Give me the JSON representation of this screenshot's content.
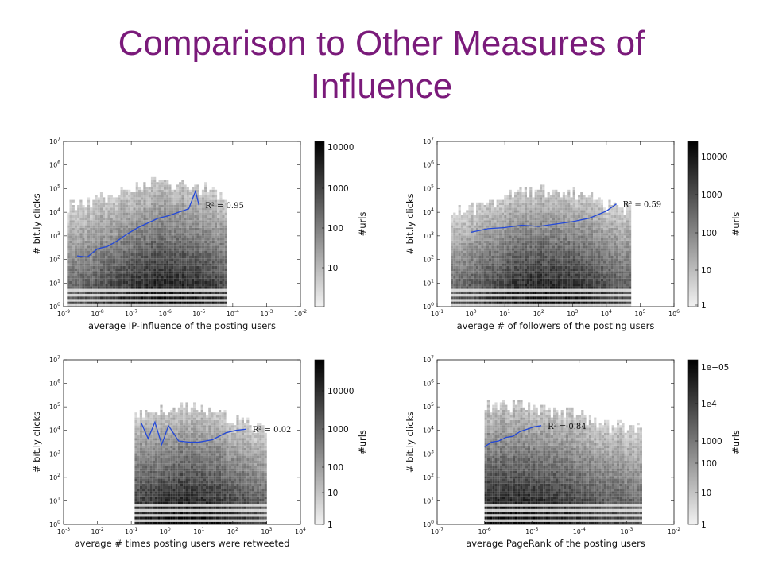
{
  "slide": {
    "title_line1": "Comparison to Other Measures of",
    "title_line2": "Influence"
  },
  "colors": {
    "title": "#7a1a7a",
    "fit_line": "#2348d8",
    "ink": "#111111"
  },
  "chart_data": [
    {
      "type": "heatmap",
      "xlabel": "average IP-influence of the posting users",
      "ylabel": "# bit.ly clicks",
      "x_scale": "log",
      "y_scale": "log",
      "xlim": [
        1e-09,
        0.01
      ],
      "ylim": [
        1,
        10000000.0
      ],
      "x_ticks": [
        "10^-9",
        "10^-8",
        "10^-7",
        "10^-6",
        "10^-5",
        "10^-4",
        "10^-3",
        "10^-2"
      ],
      "y_ticks": [
        "10^0",
        "10^1",
        "10^2",
        "10^3",
        "10^4",
        "10^5",
        "10^6",
        "10^7"
      ],
      "colorbar": {
        "label": "#urls",
        "ticks": [
          "10000",
          "1000",
          "100",
          "10"
        ]
      },
      "annotation": "R^2 = 0.95",
      "fit_line": {
        "x_log": [
          -8.6,
          -8.3,
          -8.0,
          -7.7,
          -7.4,
          -7.1,
          -6.8,
          -6.5,
          -6.2,
          -5.9,
          -5.6,
          -5.3,
          -5.1,
          -5.0
        ],
        "y_log": [
          2.15,
          2.1,
          2.45,
          2.55,
          2.8,
          3.1,
          3.35,
          3.55,
          3.75,
          3.85,
          4.0,
          4.15,
          4.9,
          4.3
        ]
      }
    },
    {
      "type": "heatmap",
      "xlabel": "average # of followers of the posting users",
      "ylabel": "# bit.ly clicks",
      "x_scale": "log",
      "y_scale": "log",
      "xlim": [
        0.1,
        1000000.0
      ],
      "ylim": [
        1,
        10000000.0
      ],
      "x_ticks": [
        "10^-1",
        "10^0",
        "10^1",
        "10^2",
        "10^3",
        "10^4",
        "10^5",
        "10^6"
      ],
      "y_ticks": [
        "10^0",
        "10^1",
        "10^2",
        "10^3",
        "10^4",
        "10^5",
        "10^6",
        "10^7"
      ],
      "colorbar": {
        "label": "#urls",
        "ticks": [
          "10000",
          "1000",
          "100",
          "10",
          "1"
        ]
      },
      "annotation": "R^2 = 0.59",
      "fit_line": {
        "x_log": [
          0.0,
          0.5,
          1.0,
          1.5,
          2.0,
          2.5,
          3.0,
          3.5,
          4.0,
          4.3
        ],
        "y_log": [
          3.15,
          3.3,
          3.35,
          3.45,
          3.4,
          3.5,
          3.6,
          3.75,
          4.05,
          4.35
        ]
      }
    },
    {
      "type": "heatmap",
      "xlabel": "average # times posting users were retweeted",
      "ylabel": "# bit.ly clicks",
      "x_scale": "log",
      "y_scale": "log",
      "xlim": [
        0.001,
        10000.0
      ],
      "ylim": [
        1,
        10000000.0
      ],
      "x_ticks": [
        "10^-3",
        "10^-2",
        "10^-1",
        "10^0",
        "10^1",
        "10^2",
        "10^3",
        "10^4"
      ],
      "y_ticks": [
        "10^0",
        "10^1",
        "10^2",
        "10^3",
        "10^4",
        "10^5",
        "10^6",
        "10^7"
      ],
      "colorbar": {
        "label": "#urls",
        "ticks": [
          "10000",
          "1000",
          "100",
          "10",
          "1"
        ]
      },
      "annotation": "R^2 = 0.02",
      "fit_line": {
        "x_log": [
          -0.7,
          -0.5,
          -0.3,
          -0.1,
          0.1,
          0.4,
          0.7,
          1.0,
          1.4,
          1.8,
          2.1,
          2.4
        ],
        "y_log": [
          4.3,
          3.65,
          4.35,
          3.4,
          4.2,
          3.55,
          3.5,
          3.5,
          3.6,
          3.9,
          4.0,
          4.05
        ]
      }
    },
    {
      "type": "heatmap",
      "xlabel": "average PageRank of the posting users",
      "ylabel": "# bit.ly clicks",
      "x_scale": "log",
      "y_scale": "log",
      "xlim": [
        1e-07,
        0.01
      ],
      "ylim": [
        1,
        10000000.0
      ],
      "x_ticks": [
        "10^-7",
        "10^-6",
        "10^-5",
        "10^-4",
        "10^-3",
        "10^-2"
      ],
      "y_ticks": [
        "10^0",
        "10^1",
        "10^2",
        "10^3",
        "10^4",
        "10^5",
        "10^6",
        "10^7"
      ],
      "colorbar": {
        "label": "#urls",
        "ticks": [
          "1e+05",
          "1e4",
          "1000",
          "100",
          "10",
          "1"
        ]
      },
      "annotation": "R^2 = 0.84",
      "fit_line": {
        "x_log": [
          -6.0,
          -5.85,
          -5.7,
          -5.55,
          -5.4,
          -5.25,
          -5.1,
          -4.95,
          -4.8
        ],
        "y_log": [
          3.3,
          3.5,
          3.55,
          3.7,
          3.75,
          3.95,
          4.05,
          4.15,
          4.2
        ]
      }
    }
  ]
}
